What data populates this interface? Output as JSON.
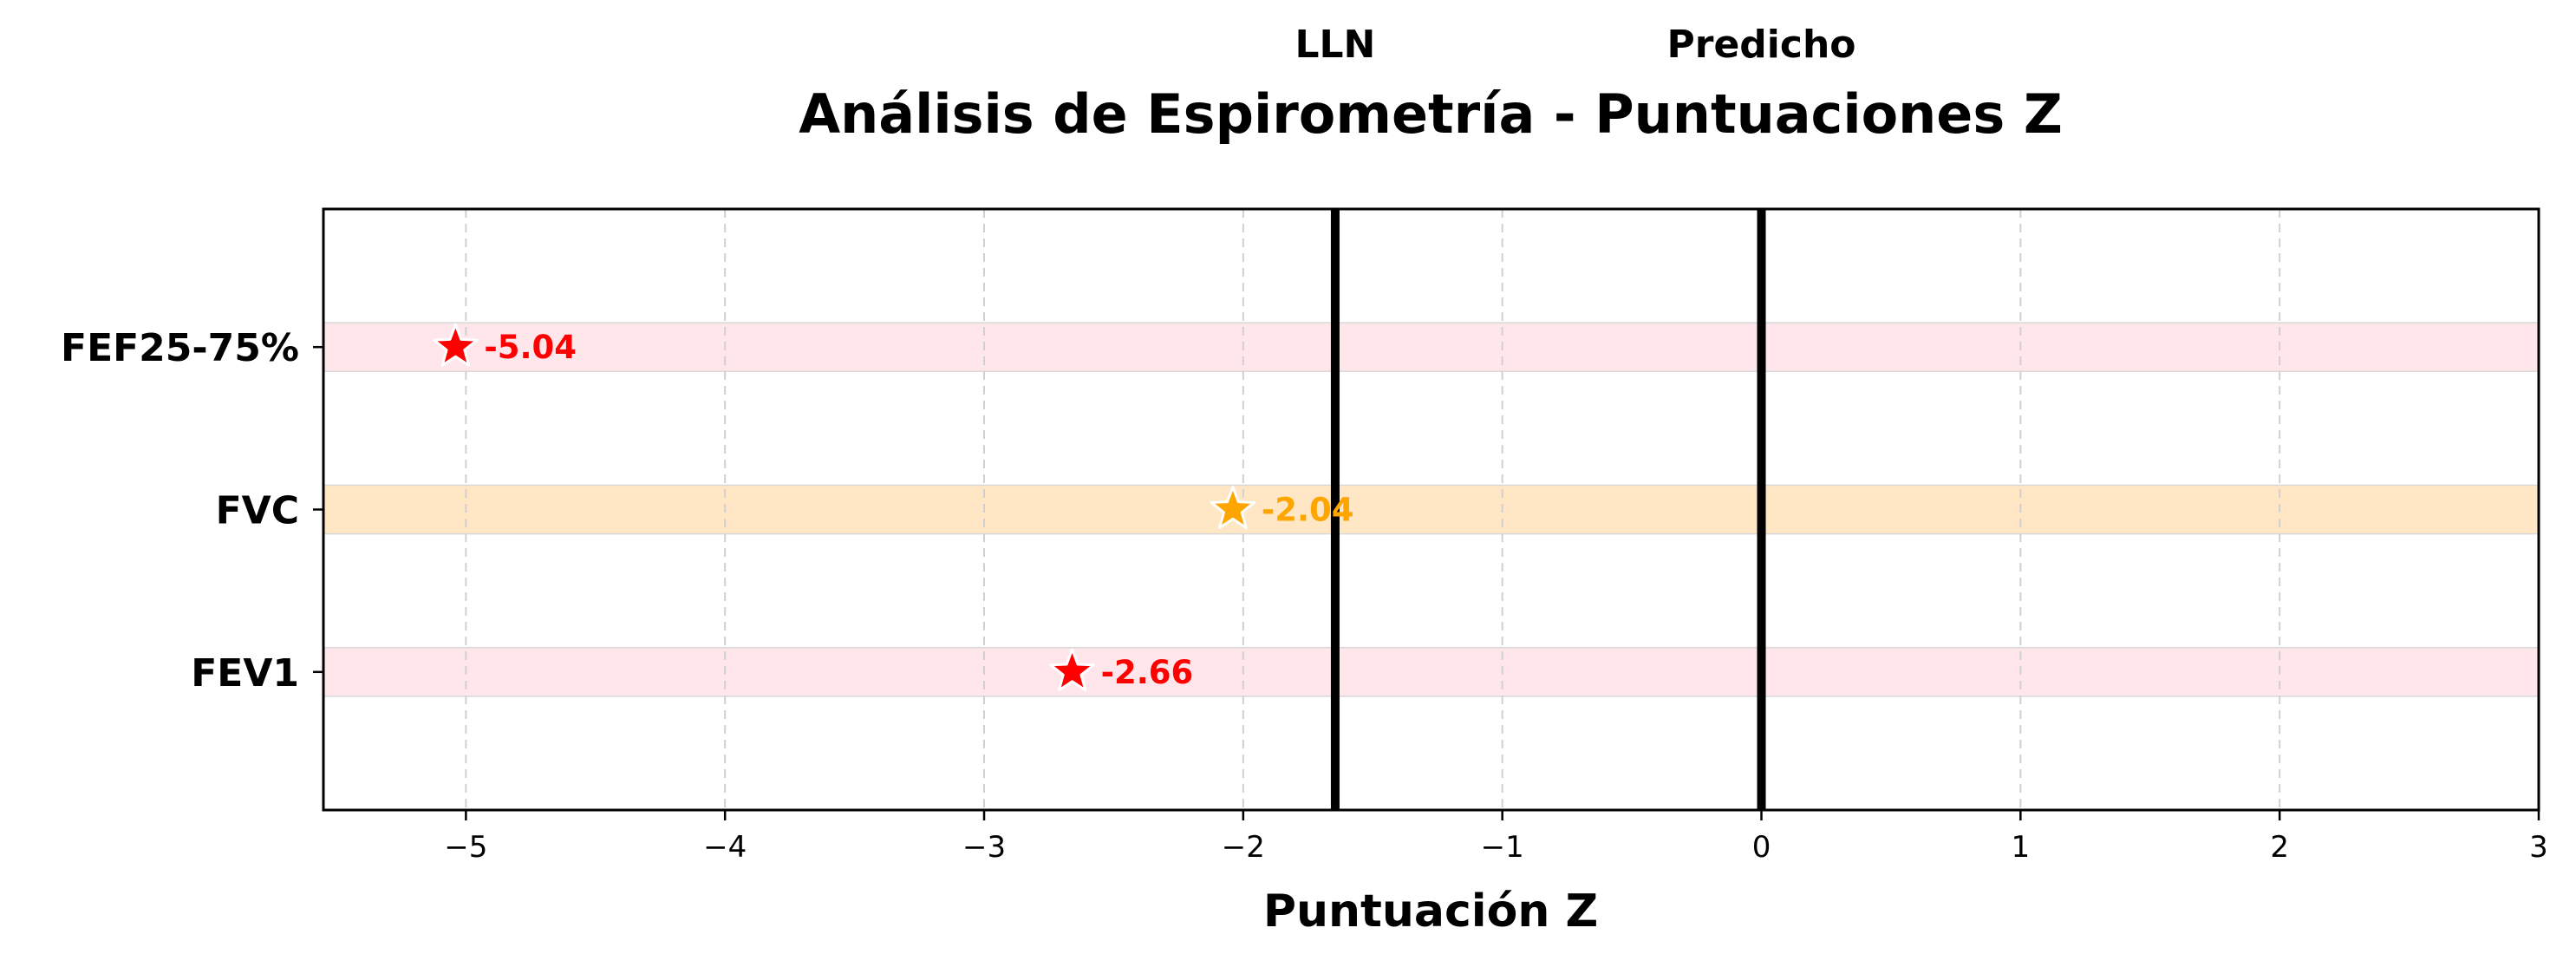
{
  "chart_data": {
    "type": "scatter",
    "title": "Análisis de Espirometría - Puntuaciones Z",
    "xlabel": "Puntuación Z",
    "ylabel": "",
    "xlim": [
      -5.55,
      3
    ],
    "xticks": [
      -5,
      -4,
      -3,
      -2,
      -1,
      0,
      1,
      2,
      3
    ],
    "xtick_labels": [
      "−5",
      "−4",
      "−3",
      "−2",
      "−1",
      "0",
      "1",
      "2",
      "3"
    ],
    "grid": "x dashed",
    "reference_lines": [
      {
        "name": "LLN",
        "x": -1.645
      },
      {
        "name": "Predicho",
        "x": 0
      }
    ],
    "categories": [
      "FEV1",
      "FVC",
      "FEF25-75%"
    ],
    "points": [
      {
        "category": "FEV1",
        "z": -2.66,
        "label": "-2.66",
        "color": "#ff0000",
        "band_color": "#ffe6ea"
      },
      {
        "category": "FVC",
        "z": -2.04,
        "label": "-2.04",
        "color": "#ffa500",
        "band_color": "#ffe7c6"
      },
      {
        "category": "FEF25-75%",
        "z": -5.04,
        "label": "-5.04",
        "color": "#ff0000",
        "band_color": "#ffe6ea"
      }
    ],
    "marker": "star"
  }
}
